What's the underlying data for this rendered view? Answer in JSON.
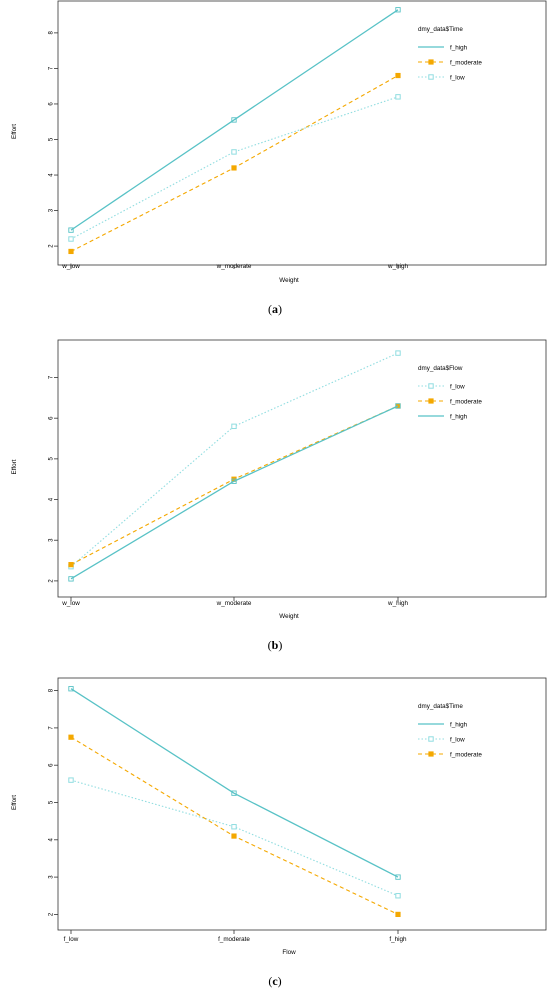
{
  "chart_data": [
    {
      "type": "line",
      "caption": {
        "open": "(",
        "letter": "a",
        "close": ")"
      },
      "xlabel": "Weight",
      "ylabel": "Effort",
      "categories": [
        "w_low",
        "w_moderate",
        "w_high"
      ],
      "ylim": [
        1.75,
        8.7
      ],
      "yticks": [
        2,
        3,
        4,
        5,
        6,
        7,
        8
      ],
      "legend_title": "dmy_data$Time",
      "legend_position": "top-right",
      "series": [
        {
          "name": "f_high",
          "values": [
            2.45,
            5.55,
            8.65
          ],
          "color": "#58c2c6",
          "dash": "solid",
          "marker": "none"
        },
        {
          "name": "f_moderate",
          "values": [
            1.85,
            4.2,
            6.8
          ],
          "color": "#f4a800",
          "dash": "dashed",
          "marker": "filled-square"
        },
        {
          "name": "f_low",
          "values": [
            2.2,
            4.65,
            6.2
          ],
          "color": "#90dde0",
          "dash": "dotted",
          "marker": "open-square"
        }
      ]
    },
    {
      "type": "line",
      "caption": {
        "open": "(",
        "letter": "b",
        "close": ")"
      },
      "xlabel": "Weight",
      "ylabel": "Effort",
      "categories": [
        "w_low",
        "w_moderate",
        "w_high"
      ],
      "ylim": [
        1.85,
        7.75
      ],
      "yticks": [
        2,
        3,
        4,
        5,
        6,
        7
      ],
      "legend_title": "dmy_data$Flow",
      "legend_position": "top-right",
      "series": [
        {
          "name": "f_low",
          "values": [
            2.35,
            5.8,
            7.6
          ],
          "color": "#90dde0",
          "dash": "dotted",
          "marker": "open-square"
        },
        {
          "name": "f_moderate",
          "values": [
            2.4,
            4.5,
            6.3
          ],
          "color": "#f4a800",
          "dash": "dashed",
          "marker": "filled-square"
        },
        {
          "name": "f_high",
          "values": [
            2.05,
            4.45,
            6.3
          ],
          "color": "#58c2c6",
          "dash": "solid",
          "marker": "none"
        }
      ]
    },
    {
      "type": "line",
      "caption": {
        "open": "(",
        "letter": "c",
        "close": ")"
      },
      "xlabel": "Flow",
      "ylabel": "Effort",
      "categories": [
        "f_low",
        "f_moderate",
        "f_high"
      ],
      "ylim": [
        1.85,
        8.15
      ],
      "yticks": [
        2,
        3,
        4,
        5,
        6,
        7,
        8
      ],
      "legend_title": "dmy_data$Time",
      "legend_position": "top-right",
      "series": [
        {
          "name": "f_high",
          "values": [
            8.05,
            5.25,
            3.0
          ],
          "color": "#58c2c6",
          "dash": "solid",
          "marker": "none"
        },
        {
          "name": "f_low",
          "values": [
            5.6,
            4.35,
            2.5
          ],
          "color": "#90dde0",
          "dash": "dotted",
          "marker": "open-square"
        },
        {
          "name": "f_moderate",
          "values": [
            6.75,
            4.1,
            2.0
          ],
          "color": "#f4a800",
          "dash": "dashed",
          "marker": "filled-square"
        }
      ]
    }
  ]
}
